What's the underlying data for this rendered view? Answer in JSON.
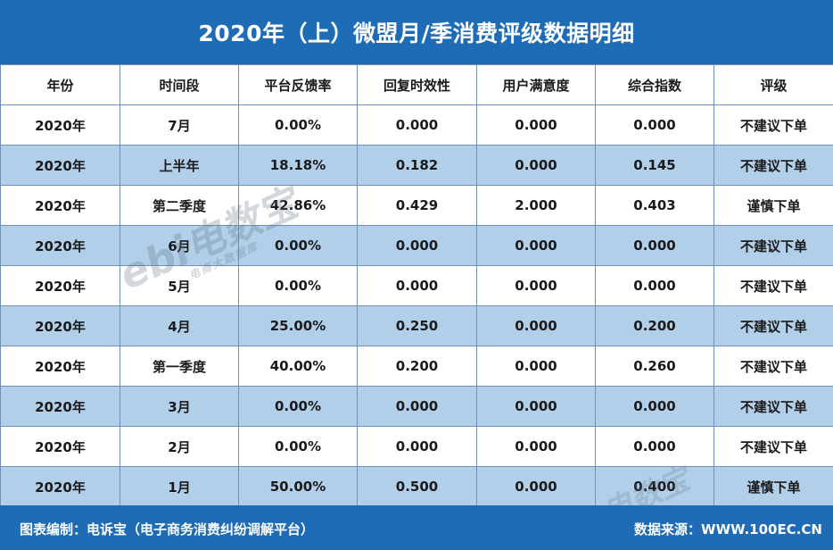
{
  "title": "2020年（上）微盟月/季消费评级数据明细",
  "columns": [
    "年份",
    "时间段",
    "平台反馈率",
    "回复时效性",
    "用户满意度",
    "综合指数",
    "评级"
  ],
  "rows": [
    [
      "2020年",
      "7月",
      "0.00%",
      "0.000",
      "0.000",
      "0.000",
      "不建议下单"
    ],
    [
      "2020年",
      "上半年",
      "18.18%",
      "0.182",
      "0.000",
      "0.145",
      "不建议下单"
    ],
    [
      "2020年",
      "第二季度",
      "42.86%",
      "0.429",
      "2.000",
      "0.403",
      "谨慎下单"
    ],
    [
      "2020年",
      "6月",
      "0.00%",
      "0.000",
      "0.000",
      "0.000",
      "不建议下单"
    ],
    [
      "2020年",
      "5月",
      "0.00%",
      "0.000",
      "0.000",
      "0.000",
      "不建议下单"
    ],
    [
      "2020年",
      "4月",
      "25.00%",
      "0.250",
      "0.000",
      "0.200",
      "不建议下单"
    ],
    [
      "2020年",
      "第一季度",
      "40.00%",
      "0.200",
      "0.000",
      "0.260",
      "不建议下单"
    ],
    [
      "2020年",
      "3月",
      "0.00%",
      "0.000",
      "0.000",
      "0.000",
      "不建议下单"
    ],
    [
      "2020年",
      "2月",
      "0.00%",
      "0.000",
      "0.000",
      "0.000",
      "不建议下单"
    ],
    [
      "2020年",
      "1月",
      "50.00%",
      "0.500",
      "0.000",
      "0.400",
      "谨慎下单"
    ]
  ],
  "watermark": {
    "logo_text": "ebi",
    "brand": "电数宝",
    "sub": "电商大数据库"
  },
  "footer": {
    "left": "图表编制：电诉宝（电子商务消费纠纷调解平台）",
    "right": "数据来源：WWW.100EC.CN"
  },
  "colors": {
    "header_blue": "#1f6cb6",
    "row_alt": "#b2cfea",
    "border": "#6f90b6"
  }
}
